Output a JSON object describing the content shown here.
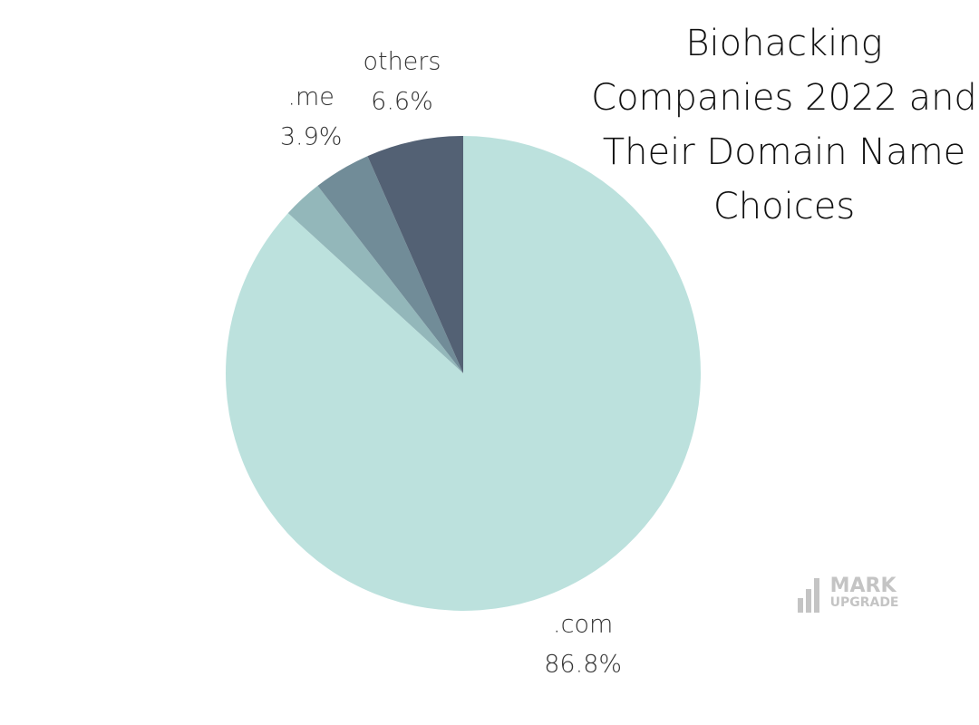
{
  "chart_data": {
    "type": "pie",
    "title": "Biohacking Companies 2022 and Their Domain Name Choices",
    "categories": [
      ".com",
      null,
      ".me",
      "others"
    ],
    "values": [
      86.8,
      2.7,
      3.9,
      6.6
    ],
    "value_labels": [
      "86.8%",
      null,
      "3.9%",
      "6.6%"
    ],
    "colors": [
      "#bce1dd",
      "#93b7ba",
      "#718c98",
      "#536174"
    ]
  },
  "watermark": {
    "line1": "MARK",
    "line2": "UPGRADE"
  }
}
